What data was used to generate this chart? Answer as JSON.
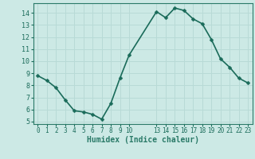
{
  "x": [
    0,
    1,
    2,
    3,
    4,
    5,
    6,
    7,
    8,
    9,
    10,
    13,
    14,
    15,
    16,
    17,
    18,
    19,
    20,
    21,
    22,
    23
  ],
  "y": [
    8.8,
    8.4,
    7.8,
    6.8,
    5.9,
    5.8,
    5.6,
    5.2,
    6.5,
    8.6,
    10.5,
    14.1,
    13.6,
    14.4,
    14.2,
    13.5,
    13.1,
    11.8,
    10.2,
    9.5,
    8.6,
    8.2
  ],
  "x_ticks": [
    0,
    1,
    2,
    3,
    4,
    5,
    6,
    7,
    8,
    9,
    10,
    13,
    14,
    15,
    16,
    17,
    18,
    19,
    20,
    21,
    22,
    23
  ],
  "x_tick_labels": [
    "0",
    "1",
    "2",
    "3",
    "4",
    "5",
    "6",
    "7",
    "8",
    "9",
    "10",
    "13",
    "14",
    "15",
    "16",
    "17",
    "18",
    "19",
    "20",
    "21",
    "22",
    "23"
  ],
  "y_ticks": [
    5,
    6,
    7,
    8,
    9,
    10,
    11,
    12,
    13,
    14
  ],
  "ylim": [
    4.8,
    14.8
  ],
  "xlim": [
    -0.5,
    23.5
  ],
  "xlabel": "Humidex (Indice chaleur)",
  "bg_color": "#cce9e5",
  "grid_color": "#b8dad6",
  "line_color": "#1a6b5a",
  "marker_color": "#1a6b5a",
  "axis_color": "#2a7a68",
  "tick_color": "#1a6b5a",
  "line_width": 1.2,
  "marker_size": 2.5
}
